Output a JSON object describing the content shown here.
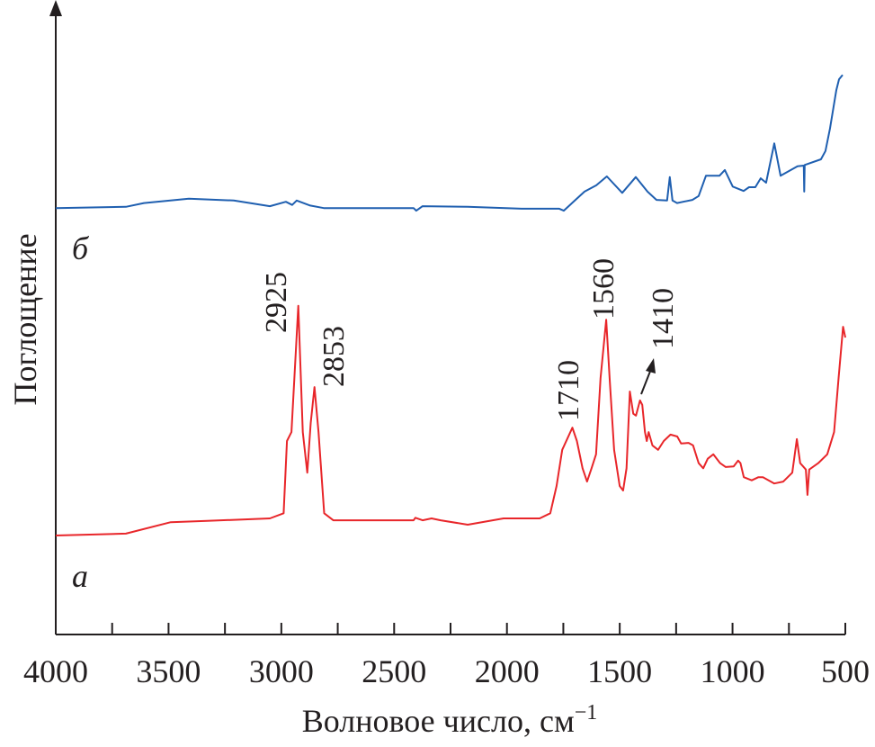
{
  "chart_data": {
    "type": "line",
    "xlabel": "Волновое число, см",
    "xlabel_superscript": "−1",
    "ylabel": "Поглощение",
    "xlim": [
      4000,
      500
    ],
    "x_reversed": true,
    "ylim": [
      0,
      100
    ],
    "y_ticks_shown": false,
    "grid": false,
    "x_ticks": [
      4000,
      3500,
      3000,
      2500,
      2000,
      1500,
      1000,
      500
    ],
    "x_minor_step": 250,
    "series": [
      {
        "name": "а",
        "color": "#e8262a",
        "points": [
          [
            4000,
            15.6
          ],
          [
            3689,
            15.9
          ],
          [
            3490,
            17.7
          ],
          [
            3330,
            17.9
          ],
          [
            3051,
            18.3
          ],
          [
            2990,
            19.1
          ],
          [
            2975,
            30.5
          ],
          [
            2955,
            31.9
          ],
          [
            2925,
            51.8
          ],
          [
            2905,
            31.9
          ],
          [
            2885,
            25.5
          ],
          [
            2870,
            33.3
          ],
          [
            2853,
            39.0
          ],
          [
            2835,
            31.9
          ],
          [
            2810,
            19.1
          ],
          [
            2770,
            18.0
          ],
          [
            2414,
            18.0
          ],
          [
            2406,
            18.4
          ],
          [
            2374,
            18.0
          ],
          [
            2334,
            18.3
          ],
          [
            2294,
            18.0
          ],
          [
            2174,
            17.3
          ],
          [
            2015,
            18.3
          ],
          [
            1855,
            18.3
          ],
          [
            1808,
            19.1
          ],
          [
            1780,
            23.4
          ],
          [
            1755,
            29.1
          ],
          [
            1710,
            32.6
          ],
          [
            1690,
            30.5
          ],
          [
            1665,
            26.2
          ],
          [
            1645,
            24.1
          ],
          [
            1625,
            26.2
          ],
          [
            1605,
            28.4
          ],
          [
            1585,
            40.4
          ],
          [
            1560,
            49.6
          ],
          [
            1545,
            40.4
          ],
          [
            1525,
            29.1
          ],
          [
            1500,
            23.4
          ],
          [
            1485,
            22.7
          ],
          [
            1470,
            26.2
          ],
          [
            1455,
            38.3
          ],
          [
            1440,
            34.8
          ],
          [
            1428,
            34.5
          ],
          [
            1410,
            36.9
          ],
          [
            1400,
            36.2
          ],
          [
            1388,
            31.9
          ],
          [
            1380,
            30.5
          ],
          [
            1372,
            31.9
          ],
          [
            1355,
            29.8
          ],
          [
            1330,
            29.1
          ],
          [
            1305,
            30.5
          ],
          [
            1275,
            31.5
          ],
          [
            1245,
            31.2
          ],
          [
            1228,
            30.1
          ],
          [
            1195,
            30.2
          ],
          [
            1175,
            29.8
          ],
          [
            1150,
            27.0
          ],
          [
            1130,
            26.2
          ],
          [
            1110,
            27.7
          ],
          [
            1085,
            28.4
          ],
          [
            1055,
            27.0
          ],
          [
            1030,
            26.4
          ],
          [
            995,
            26.5
          ],
          [
            975,
            27.4
          ],
          [
            965,
            27.0
          ],
          [
            950,
            24.8
          ],
          [
            915,
            24.3
          ],
          [
            885,
            24.8
          ],
          [
            865,
            24.8
          ],
          [
            815,
            23.8
          ],
          [
            775,
            24.1
          ],
          [
            735,
            25.5
          ],
          [
            715,
            30.8
          ],
          [
            700,
            27.0
          ],
          [
            675,
            26.0
          ],
          [
            668,
            22.0
          ],
          [
            660,
            26.0
          ],
          [
            620,
            27.0
          ],
          [
            580,
            28.4
          ],
          [
            550,
            31.9
          ],
          [
            530,
            40.4
          ],
          [
            510,
            48.5
          ],
          [
            500,
            46.8
          ]
        ]
      },
      {
        "name": "б",
        "color": "#1f5fb0",
        "points": [
          [
            4000,
            67.2
          ],
          [
            3689,
            67.4
          ],
          [
            3609,
            68.0
          ],
          [
            3410,
            68.7
          ],
          [
            3211,
            68.4
          ],
          [
            3051,
            67.5
          ],
          [
            2980,
            68.2
          ],
          [
            2952,
            67.7
          ],
          [
            2932,
            68.4
          ],
          [
            2872,
            67.6
          ],
          [
            2812,
            67.2
          ],
          [
            2414,
            67.2
          ],
          [
            2402,
            66.8
          ],
          [
            2374,
            67.5
          ],
          [
            2174,
            67.4
          ],
          [
            1935,
            67.1
          ],
          [
            1768,
            67.1
          ],
          [
            1748,
            66.8
          ],
          [
            1656,
            69.8
          ],
          [
            1604,
            70.8
          ],
          [
            1557,
            72.2
          ],
          [
            1489,
            69.6
          ],
          [
            1429,
            72.1
          ],
          [
            1377,
            69.8
          ],
          [
            1337,
            68.5
          ],
          [
            1290,
            68.4
          ],
          [
            1278,
            72.1
          ],
          [
            1266,
            68.4
          ],
          [
            1246,
            68.0
          ],
          [
            1178,
            68.5
          ],
          [
            1150,
            69.1
          ],
          [
            1118,
            72.3
          ],
          [
            1058,
            72.3
          ],
          [
            1034,
            73.2
          ],
          [
            999,
            70.6
          ],
          [
            951,
            69.9
          ],
          [
            927,
            70.5
          ],
          [
            899,
            70.5
          ],
          [
            875,
            71.9
          ],
          [
            851,
            71.2
          ],
          [
            815,
            77.4
          ],
          [
            787,
            72.3
          ],
          [
            712,
            73.8
          ],
          [
            684,
            73.9
          ],
          [
            682,
            69.8
          ],
          [
            680,
            74.0
          ],
          [
            608,
            74.9
          ],
          [
            588,
            76.2
          ],
          [
            568,
            79.7
          ],
          [
            540,
            85.8
          ],
          [
            528,
            87.5
          ],
          [
            512,
            88.2
          ]
        ]
      }
    ],
    "annotations": [
      "2925",
      "2853",
      "1710",
      "1560",
      "1410"
    ]
  }
}
